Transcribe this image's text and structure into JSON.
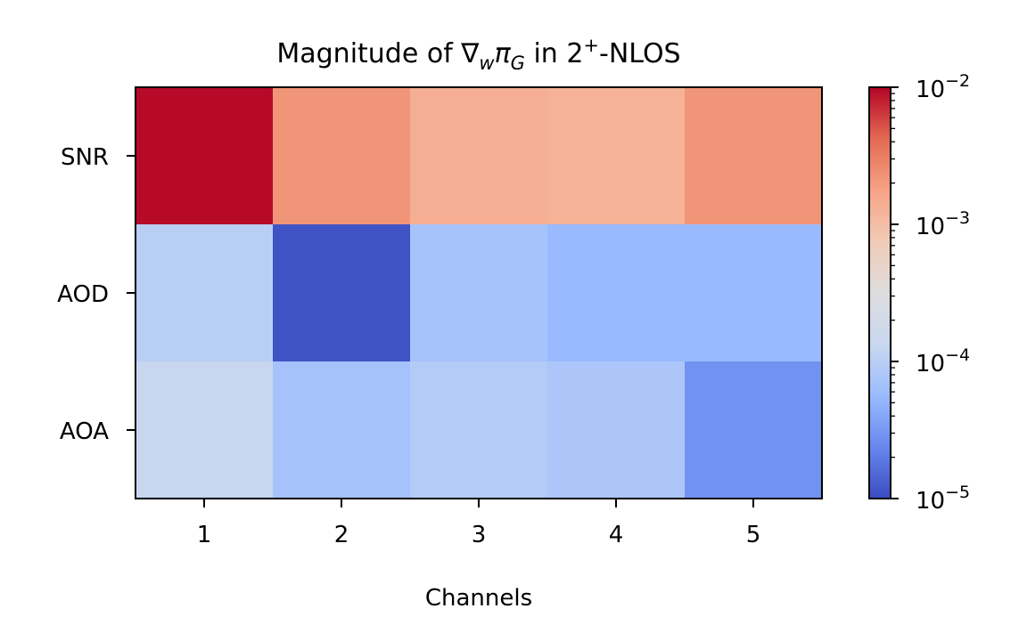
{
  "chart_data": {
    "type": "heatmap",
    "title": {
      "prefix": "Magnitude of ∇",
      "w_sub": "w",
      "pi": "π",
      "g_sub": "G",
      "middle": " in 2",
      "sup": "+",
      "suffix": "-NLOS"
    },
    "xlabel": "Channels",
    "ylabel": "",
    "x_categories": [
      "1",
      "2",
      "3",
      "4",
      "5"
    ],
    "y_categories": [
      "SNR",
      "AOD",
      "AOA"
    ],
    "values": [
      [
        0.0095,
        0.0022,
        0.0014,
        0.0013,
        0.0022
      ],
      [
        0.0001,
        1.1e-05,
        7e-05,
        5.5e-05,
        5.5e-05
      ],
      [
        0.00013,
        7e-05,
        9e-05,
        8e-05,
        2.8e-05
      ]
    ],
    "colorbar": {
      "scale": "log",
      "colormap": "coolwarm",
      "vmin": 1e-05,
      "vmax": 0.01,
      "ticks": [
        {
          "value": 0.01,
          "base": "10",
          "exp": "−2"
        },
        {
          "value": 0.001,
          "base": "10",
          "exp": "−3"
        },
        {
          "value": 0.0001,
          "base": "10",
          "exp": "−4"
        },
        {
          "value": 1e-05,
          "base": "10",
          "exp": "−5"
        }
      ]
    },
    "colormap_stops": [
      "#3b4cc0",
      "#6788ee",
      "#9abbff",
      "#c9d7f0",
      "#dddddd",
      "#f2cbb7",
      "#f6a385",
      "#e36a53",
      "#b40426"
    ]
  }
}
